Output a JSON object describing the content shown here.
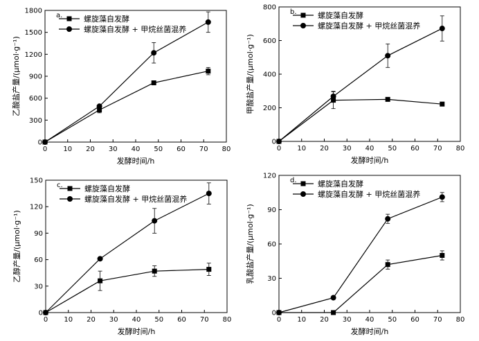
{
  "chart_data": [
    {
      "type": "line",
      "panel_label": "a.",
      "xlabel": "发酵时间/h",
      "ylabel": "乙酸盐产量/(μmol·g⁻¹)",
      "xlim": [
        0,
        80
      ],
      "ylim": [
        0,
        1800
      ],
      "xticks": [
        0,
        10,
        20,
        30,
        40,
        50,
        60,
        70,
        80
      ],
      "yticks": [
        0,
        300,
        600,
        900,
        1200,
        1500,
        1800
      ],
      "legend_position": "top-left",
      "series": [
        {
          "name": "螺旋藻自发酵",
          "marker": "square",
          "x": [
            0,
            24,
            48,
            72
          ],
          "y": [
            0,
            440,
            810,
            970
          ],
          "err": [
            0,
            40,
            0,
            50
          ]
        },
        {
          "name": "螺旋藻自发酵 + 甲烷丝菌混养",
          "marker": "circle",
          "x": [
            0,
            24,
            48,
            72
          ],
          "y": [
            0,
            490,
            1220,
            1640
          ],
          "err": [
            0,
            0,
            140,
            140
          ]
        }
      ]
    },
    {
      "type": "line",
      "panel_label": "b.",
      "xlabel": "发酵时间/h",
      "ylabel": "甲酸盐产量/(μmol·g⁻¹)",
      "xlim": [
        0,
        80
      ],
      "ylim": [
        0,
        800
      ],
      "xticks": [
        0,
        10,
        20,
        30,
        40,
        50,
        60,
        70,
        80
      ],
      "yticks": [
        0,
        200,
        400,
        600,
        800
      ],
      "legend_position": "top-left",
      "series": [
        {
          "name": "螺旋藻自发酵",
          "marker": "square",
          "x": [
            0,
            24,
            48,
            72
          ],
          "y": [
            0,
            245,
            250,
            222
          ],
          "err": [
            0,
            50,
            0,
            0
          ]
        },
        {
          "name": "螺旋藻自发酵 + 甲烷丝菌混养",
          "marker": "circle",
          "x": [
            0,
            24,
            48,
            72
          ],
          "y": [
            0,
            268,
            510,
            672
          ],
          "err": [
            0,
            30,
            70,
            75
          ]
        }
      ]
    },
    {
      "type": "line",
      "panel_label": "c.",
      "xlabel": "发酵时间/h",
      "ylabel": "乙醇产量/(μmol·g⁻¹)",
      "xlim": [
        0,
        80
      ],
      "ylim": [
        0,
        150
      ],
      "xticks": [
        0,
        10,
        20,
        30,
        40,
        50,
        60,
        70,
        80
      ],
      "yticks": [
        0,
        30,
        60,
        90,
        120,
        150
      ],
      "legend_position": "top-left",
      "series": [
        {
          "name": "螺旋藻自发酵",
          "marker": "square",
          "x": [
            0,
            24,
            48,
            72
          ],
          "y": [
            0,
            36,
            47,
            49
          ],
          "err": [
            0,
            11,
            6,
            7
          ]
        },
        {
          "name": "螺旋藻自发酵 + 甲烷丝菌混养",
          "marker": "circle",
          "x": [
            0,
            24,
            48,
            72
          ],
          "y": [
            0,
            61,
            104,
            135
          ],
          "err": [
            0,
            0,
            14,
            12
          ]
        }
      ]
    },
    {
      "type": "line",
      "panel_label": "d.",
      "xlabel": "发酵时间/h",
      "ylabel": "乳酸盐产量/(μmol·g⁻¹)",
      "xlim": [
        0,
        80
      ],
      "ylim": [
        0,
        120
      ],
      "xticks": [
        0,
        10,
        20,
        30,
        40,
        50,
        60,
        70,
        80
      ],
      "yticks": [
        0,
        30,
        60,
        90,
        120
      ],
      "legend_position": "top-left",
      "series": [
        {
          "name": "螺旋藻自发酵",
          "marker": "square",
          "x": [
            0,
            24,
            48,
            72
          ],
          "y": [
            0,
            0,
            42,
            50
          ],
          "err": [
            0,
            0,
            4,
            4
          ]
        },
        {
          "name": "螺旋藻自发酵 + 甲烷丝菌混养",
          "marker": "circle",
          "x": [
            0,
            24,
            48,
            72
          ],
          "y": [
            0,
            13,
            82,
            101
          ],
          "err": [
            0,
            0,
            4,
            4
          ]
        }
      ]
    }
  ]
}
